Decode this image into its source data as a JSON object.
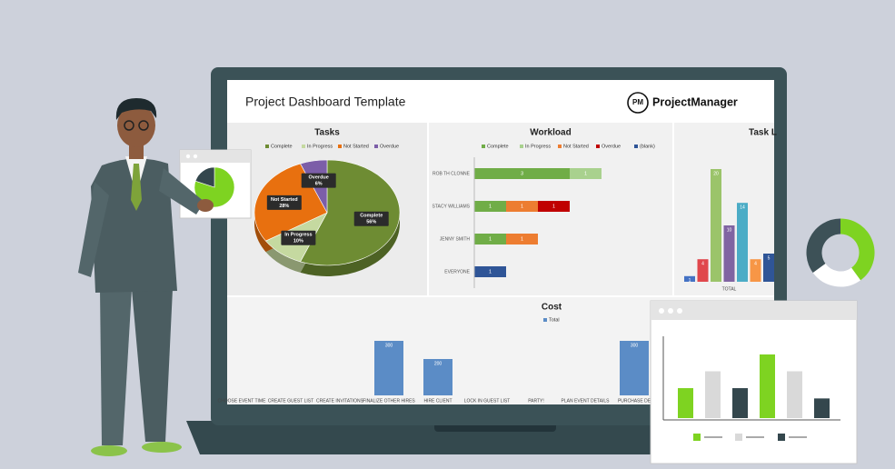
{
  "header": {
    "title": "Project Dashboard Template",
    "logo_mark": "PM",
    "brand": "ProjectManager"
  },
  "chart_data": [
    {
      "type": "pie",
      "title": "Tasks",
      "categories": [
        "Complete",
        "In Progress",
        "Not Started",
        "Overdue"
      ],
      "values": [
        56,
        10,
        28,
        6
      ],
      "value_labels": [
        "56%",
        "10%",
        "28%",
        "6%"
      ],
      "colors": [
        "#6e8c33",
        "#c5d9a0",
        "#e8700f",
        "#7c5ea8"
      ]
    },
    {
      "type": "hstack",
      "title": "Workload",
      "categories": [
        "ROB TH CLONNE",
        "STACY WILLIAMS",
        "JENNY SMITH",
        "EVERYONE"
      ],
      "series": [
        {
          "name": "Complete",
          "color": "#70ad47",
          "values": [
            3,
            1,
            1,
            null
          ]
        },
        {
          "name": "In Progress",
          "color": "#a9d18e",
          "values": [
            1,
            null,
            null,
            null
          ]
        },
        {
          "name": "Not Started",
          "color": "#ed7d31",
          "values": [
            null,
            1,
            1,
            null
          ]
        },
        {
          "name": "Overdue",
          "color": "#c00000",
          "values": [
            null,
            1,
            null,
            null
          ]
        },
        {
          "name": "(blank)",
          "color": "#2f5597",
          "values": [
            null,
            null,
            null,
            1
          ]
        }
      ]
    },
    {
      "type": "bar",
      "title": "Task L",
      "categories": [
        "TOTAL"
      ],
      "series": [
        {
          "color": "#4472c4",
          "values": [
            1
          ]
        },
        {
          "color": "#e0474c",
          "values": [
            4
          ]
        },
        {
          "color": "#9bc46a",
          "values": [
            20
          ]
        },
        {
          "color": "#8064a2",
          "values": [
            10
          ]
        },
        {
          "color": "#4bacc6",
          "values": [
            14
          ]
        },
        {
          "color": "#f79646",
          "values": [
            4
          ]
        },
        {
          "color": "#2f5597",
          "values": [
            5
          ]
        }
      ]
    },
    {
      "type": "bar",
      "title": "Cost",
      "categories": [
        "CHOOSE EVENT TIME",
        "CREATE GUEST LIST",
        "CREATE INVITATIONS",
        "FINALIZE OTHER HIRES",
        "HIRE CLIENT",
        "LOCK IN GUEST LIST",
        "PARTY!",
        "PLAN EVENT DETAILS",
        "PURCHASE DE"
      ],
      "series": [
        {
          "name": "Total",
          "color": "#5b8cc6",
          "values": [
            0,
            0,
            0,
            300,
            200,
            0,
            0,
            0,
            300
          ]
        }
      ]
    },
    {
      "type": "bar",
      "values": [
        32,
        50,
        32,
        68,
        50,
        21
      ],
      "colors": [
        "#7ed321",
        "#d9d9d9",
        "#34474d",
        "#7ed321",
        "#d9d9d9",
        "#34474d"
      ]
    },
    {
      "type": "donut",
      "values": [
        40,
        25,
        35
      ],
      "colors": [
        "#7ed321",
        "#ffffff",
        "#3d5157"
      ]
    },
    {
      "type": "pie",
      "values": [
        80,
        20
      ],
      "colors": [
        "#7ed321",
        "#34474d"
      ]
    }
  ]
}
